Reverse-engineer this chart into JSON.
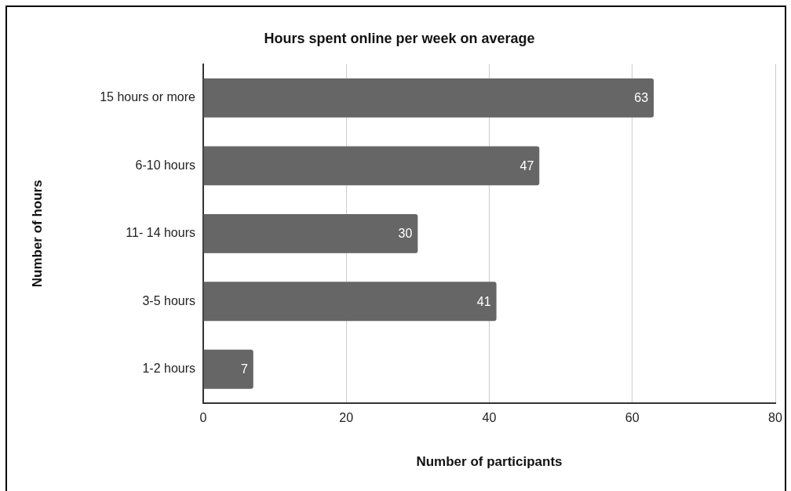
{
  "chart_data": {
    "type": "bar",
    "orientation": "horizontal",
    "title": "Hours spent online per week on average",
    "xlabel": "Number of participants",
    "ylabel": "Number of hours",
    "categories": [
      "15 hours or more",
      "6-10 hours",
      "11- 14 hours",
      "3-5 hours",
      "1-2 hours"
    ],
    "values": [
      63,
      47,
      30,
      41,
      7
    ],
    "color": "#666666",
    "xlim": [
      0,
      80
    ],
    "xticks": [
      0,
      20,
      40,
      60,
      80
    ],
    "grid": "x",
    "data_labels": true,
    "legend": false
  }
}
